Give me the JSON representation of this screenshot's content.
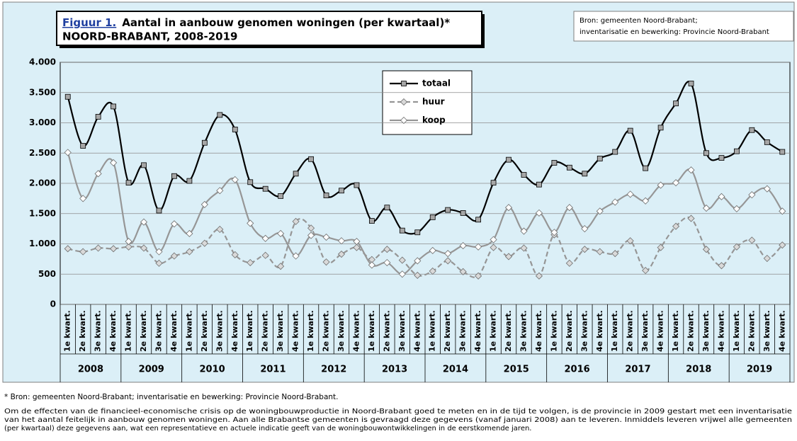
{
  "chart_data": {
    "type": "line",
    "figure_label": "Figuur 1.",
    "title": "Aantal in aanbouw genomen woningen (per kwartaal)*",
    "subtitle": "NOORD-BRABANT, 2008-2019",
    "source_lines": [
      "Bron: gemeenten Noord-Brabant;",
      "inventarisatie en bewerking: Provincie Noord-Brabant"
    ],
    "categories": [
      "1e kwart.",
      "2e kwart.",
      "3e kwart.",
      "4e kwart.",
      "1e kwart.",
      "2e kwart.",
      "3e kwart.",
      "4e kwart.",
      "1e kwart.",
      "2e kwart.",
      "3e kwart.",
      "4e kwart.",
      "1e kwart.",
      "2e kwart.",
      "3e kwart.",
      "4e kwart.",
      "1e kwart.",
      "2e kwart.",
      "3e kwart.",
      "4e kwart.",
      "1e kwart.",
      "2e kwart.",
      "3e kwart.",
      "4e kwart.",
      "1e kwart.",
      "2e kwart.",
      "3e kwart.",
      "4e kwart.",
      "1e kwart.",
      "2e kwart.",
      "3e kwart.",
      "4e kwart.",
      "1e kwart.",
      "2e kwart.",
      "3e kwart.",
      "4e kwart.",
      "1e kwart.",
      "2e kwart.",
      "3e kwart.",
      "4e kwart.",
      "1e kwart.",
      "2e kwart.",
      "3e kwart.",
      "4e kwart.",
      "1e kwart.",
      "2e kwart.",
      "3e kwart.",
      "4e kwart."
    ],
    "years": [
      "2008",
      "2009",
      "2010",
      "2011",
      "2012",
      "2013",
      "2014",
      "2015",
      "2016",
      "2017",
      "2018",
      "2019"
    ],
    "series": [
      {
        "name": "totaal",
        "color": "#000000",
        "marker": "square",
        "marker_color": "#a6a6a6",
        "dashed": false,
        "values": [
          3430,
          2620,
          3100,
          3270,
          2010,
          2300,
          1550,
          2120,
          2040,
          2670,
          3130,
          2890,
          2020,
          1910,
          1790,
          2160,
          2400,
          1800,
          1880,
          1970,
          1380,
          1600,
          1220,
          1190,
          1440,
          1560,
          1510,
          1400,
          2010,
          2390,
          2140,
          1980,
          2340,
          2260,
          2160,
          2410,
          2520,
          2870,
          2250,
          2920,
          3320,
          3650,
          2500,
          2420,
          2530,
          2880,
          2680,
          2520
        ]
      },
      {
        "name": "huur",
        "color": "#969696",
        "marker": "diamond",
        "marker_color": "#d9d9d9",
        "dashed": true,
        "values": [
          920,
          870,
          930,
          920,
          950,
          930,
          680,
          800,
          870,
          1010,
          1240,
          820,
          690,
          810,
          630,
          1370,
          1260,
          700,
          830,
          940,
          740,
          910,
          730,
          480,
          550,
          720,
          540,
          470,
          940,
          790,
          930,
          470,
          1150,
          680,
          910,
          870,
          840,
          1050,
          560,
          940,
          1290,
          1420,
          910,
          640,
          950,
          1060,
          760,
          980
        ]
      },
      {
        "name": "koop",
        "color": "#969696",
        "marker": "diamond",
        "marker_color": "#ffffff",
        "dashed": false,
        "values": [
          2510,
          1750,
          2160,
          2340,
          1040,
          1360,
          870,
          1330,
          1170,
          1650,
          1880,
          2060,
          1340,
          1090,
          1170,
          800,
          1140,
          1110,
          1050,
          1040,
          650,
          690,
          500,
          720,
          890,
          840,
          970,
          950,
          1070,
          1600,
          1210,
          1510,
          1190,
          1600,
          1250,
          1540,
          1690,
          1820,
          1710,
          1970,
          2010,
          2220,
          1590,
          1780,
          1580,
          1810,
          1910,
          1540
        ]
      }
    ],
    "ylim": [
      0,
      4000
    ],
    "yticks": [
      0,
      500,
      {
        "value": 1000,
        "label": "1.000"
      },
      {
        "value": 1500,
        "label": "1.500"
      },
      {
        "value": 2000,
        "label": "2.000"
      },
      {
        "value": 2500,
        "label": "2.500"
      },
      {
        "value": 3000,
        "label": "3.000"
      },
      {
        "value": 3500,
        "label": "3.500"
      },
      {
        "value": 4000,
        "label": "4.000"
      }
    ],
    "grid": true,
    "smooth": true,
    "footnote": "* Bron: gemeenten Noord-Brabant; inventarisatie en bewerking: Provincie Noord-Brabant.",
    "note_lines": [
      "Om de effecten van de financieel-economische crisis op de woningbouwproductie in Noord-Brabant goed te meten en in de tijd te volgen, is de provincie in 2009 gestart met een inventarisatie",
      "van het aantal feitelijk in aanbouw genomen woningen. Aan alle Brabantse gemeenten is gevraagd deze gegevens (vanaf januari 2008) aan te leveren. Inmiddels leveren vrijwel alle gemeenten",
      "(per kwartaal) deze gegevens aan, wat een representatieve en actuele indicatie geeft van de woningbouwontwikkelingen in de eerstkomende jaren."
    ]
  }
}
